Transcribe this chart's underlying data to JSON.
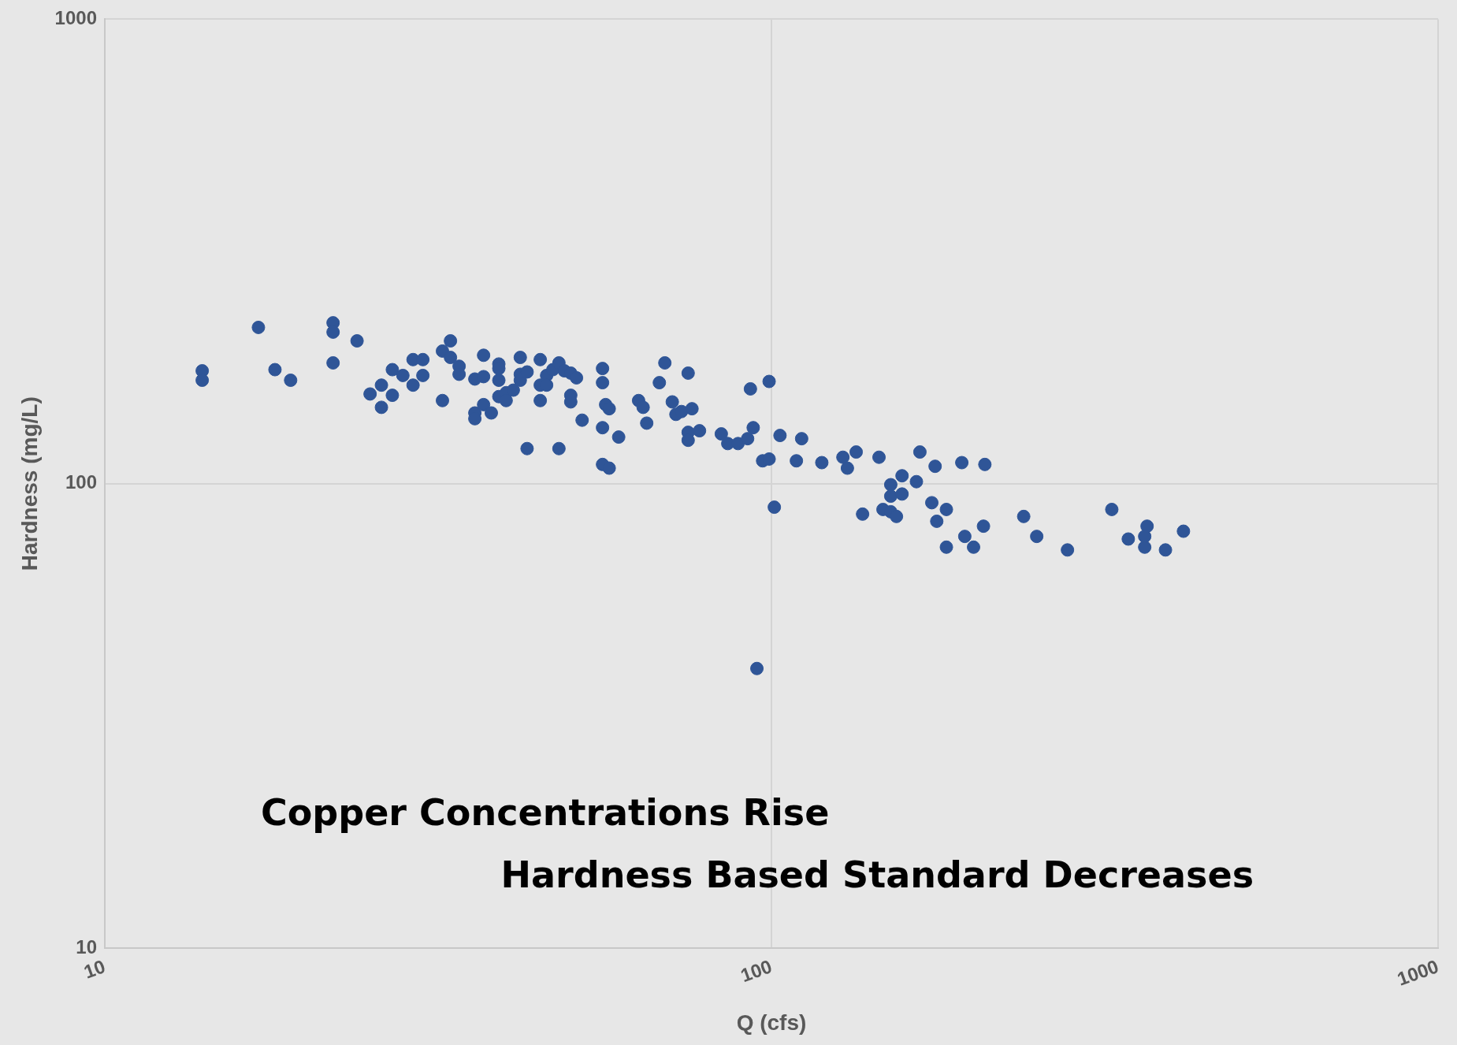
{
  "chart_data": {
    "type": "scatter",
    "xlabel": "Q (cfs)",
    "ylabel": "Hardness (mg/L)",
    "annotations": [
      "Copper Concentrations Rise",
      "Hardness Based Standard Decreases"
    ],
    "log": "xy",
    "xlim": [
      10,
      1000
    ],
    "xticks": [
      10,
      100,
      1000
    ],
    "ylim": [
      10,
      1000
    ],
    "yticks": [
      10,
      100,
      1000
    ],
    "grid": true,
    "legend": false,
    "marker": "circle",
    "series": [
      {
        "color": "#2f5597",
        "x": [
          14,
          14,
          17,
          18,
          19,
          22,
          22,
          22,
          23.9,
          25,
          26,
          26,
          27,
          27,
          28,
          29,
          29,
          30,
          30,
          32.1,
          32.1,
          33,
          33,
          34,
          34,
          35.9,
          35.9,
          35.9,
          37,
          37,
          37,
          38,
          39,
          39,
          39,
          39,
          40,
          40,
          41,
          42,
          42,
          42,
          43,
          43,
          45,
          45,
          45,
          46,
          46,
          47,
          48,
          48,
          48.9,
          50,
          50,
          50,
          51,
          52,
          55.8,
          55.8,
          55.8,
          55.8,
          56.4,
          57.1,
          57.1,
          59,
          63.2,
          64.2,
          65,
          67.9,
          69.2,
          71,
          71.9,
          73.3,
          75,
          75,
          75,
          76,
          78,
          84.1,
          86,
          89.1,
          92.1,
          93,
          93.9,
          95.1,
          97,
          99.2,
          99.2,
          101,
          103,
          109,
          111,
          119,
          128,
          130,
          134,
          137,
          145,
          147,
          151,
          151,
          151,
          154,
          157,
          157,
          165,
          167,
          174,
          176,
          177,
          183,
          183,
          193,
          195,
          201,
          208,
          209,
          239,
          250,
          278,
          324,
          343,
          363,
          363,
          366,
          390,
          415
        ],
        "values": [
          175,
          167,
          217,
          176,
          167,
          222,
          212,
          182,
          203,
          156,
          163,
          146,
          176,
          155,
          171,
          185,
          163,
          185,
          171,
          193,
          151,
          203,
          187,
          179,
          172,
          168,
          142,
          138,
          189,
          170,
          148,
          142,
          181,
          177,
          167,
          154,
          157,
          151,
          159,
          187,
          172,
          167,
          174,
          119,
          185,
          163,
          151,
          171,
          163,
          176,
          182,
          119,
          175,
          173,
          155,
          150,
          169,
          137,
          177,
          165,
          132,
          110,
          148,
          145,
          108,
          126,
          151,
          146,
          135,
          165,
          182,
          150,
          141,
          143,
          173,
          129,
          124,
          145,
          130,
          128,
          122,
          122,
          125,
          160,
          132,
          40,
          112,
          166,
          113,
          89,
          127,
          112,
          125,
          111,
          114,
          108,
          117,
          86,
          114,
          88,
          99.5,
          94,
          87,
          85,
          104,
          95,
          101,
          117,
          91,
          109,
          83,
          88,
          73,
          111,
          77,
          73,
          81,
          110,
          85,
          77,
          72,
          88,
          76,
          73,
          77,
          81,
          72,
          79
        ]
      }
    ]
  }
}
